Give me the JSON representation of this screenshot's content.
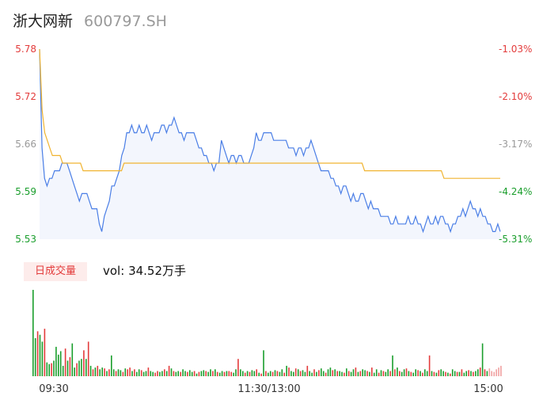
{
  "header": {
    "name": "浙大网新",
    "code": "600797.SH"
  },
  "volume_panel": {
    "badge": "日成交量",
    "label": "vol:",
    "value": "34.52万手"
  },
  "colors": {
    "price_line": "#4a7ee6",
    "avg_line": "#f0b431",
    "area_fill": "#f3f6fd",
    "up": "#e33b3b",
    "down": "#1a9e2c",
    "neutral": "#999999"
  },
  "chart_data": [
    {
      "type": "line",
      "y_ticks_left": [
        "5.78",
        "5.72",
        "5.66",
        "5.59",
        "5.53"
      ],
      "y_ticks_right": [
        "-1.03%",
        "-2.10%",
        "-3.17%",
        "-4.24%",
        "-5.31%"
      ],
      "ylim": [
        5.53,
        5.78
      ],
      "x_ticks": [
        "09:30",
        "11:30/13:00",
        "15:00"
      ],
      "series": [
        {
          "values": [
            5.78,
            5.65,
            5.61,
            5.6,
            5.61,
            5.61,
            5.62,
            5.62,
            5.62,
            5.63,
            5.63,
            5.63,
            5.62,
            5.61,
            5.6,
            5.59,
            5.58,
            5.59,
            5.59,
            5.59,
            5.58,
            5.57,
            5.57,
            5.57,
            5.55,
            5.54,
            5.56,
            5.57,
            5.58,
            5.6,
            5.6,
            5.61,
            5.62,
            5.64,
            5.65,
            5.67,
            5.67,
            5.68,
            5.67,
            5.67,
            5.68,
            5.67,
            5.67,
            5.68,
            5.67,
            5.66,
            5.67,
            5.67,
            5.67,
            5.68,
            5.68,
            5.67,
            5.68,
            5.68,
            5.69,
            5.68,
            5.67,
            5.67,
            5.66,
            5.67,
            5.67,
            5.67,
            5.67,
            5.66,
            5.65,
            5.65,
            5.64,
            5.64,
            5.63,
            5.63,
            5.62,
            5.63,
            5.63,
            5.66,
            5.65,
            5.64,
            5.63,
            5.64,
            5.64,
            5.63,
            5.64,
            5.64,
            5.63,
            5.63,
            5.63,
            5.64,
            5.65,
            5.67,
            5.66,
            5.66,
            5.67,
            5.67,
            5.67,
            5.67,
            5.66,
            5.66,
            5.66,
            5.66,
            5.66,
            5.66,
            5.65,
            5.65,
            5.65,
            5.64,
            5.65,
            5.65,
            5.64,
            5.65,
            5.65,
            5.66,
            5.65,
            5.64,
            5.63,
            5.62,
            5.62,
            5.62,
            5.62,
            5.61,
            5.61,
            5.6,
            5.6,
            5.59,
            5.6,
            5.6,
            5.59,
            5.58,
            5.59,
            5.58,
            5.58,
            5.59,
            5.59,
            5.58,
            5.57,
            5.58,
            5.57,
            5.57,
            5.57,
            5.56,
            5.56,
            5.56,
            5.56,
            5.55,
            5.55,
            5.56,
            5.55,
            5.55,
            5.55,
            5.55,
            5.56,
            5.55,
            5.55,
            5.56,
            5.55,
            5.55,
            5.54,
            5.55,
            5.56,
            5.55,
            5.55,
            5.56,
            5.55,
            5.56,
            5.56,
            5.55,
            5.55,
            5.54,
            5.55,
            5.55,
            5.56,
            5.56,
            5.57,
            5.56,
            5.57,
            5.58,
            5.57,
            5.57,
            5.56,
            5.57,
            5.56,
            5.56,
            5.55,
            5.55,
            5.54,
            5.54,
            5.55,
            5.54
          ],
          "line_color": "#4a7ee6"
        },
        {
          "values": [
            5.78,
            5.7,
            5.67,
            5.66,
            5.65,
            5.64,
            5.64,
            5.64,
            5.64,
            5.63,
            5.63,
            5.63,
            5.63,
            5.63,
            5.63,
            5.63,
            5.63,
            5.62,
            5.62,
            5.62,
            5.62,
            5.62,
            5.62,
            5.62,
            5.62,
            5.62,
            5.62,
            5.62,
            5.62,
            5.62,
            5.62,
            5.62,
            5.62,
            5.63,
            5.63,
            5.63,
            5.63,
            5.63,
            5.63,
            5.63,
            5.63,
            5.63,
            5.63,
            5.63,
            5.63,
            5.63,
            5.63,
            5.63,
            5.63,
            5.63,
            5.63,
            5.63,
            5.63,
            5.63,
            5.63,
            5.63,
            5.63,
            5.63,
            5.63,
            5.63,
            5.63,
            5.63,
            5.63,
            5.63,
            5.63,
            5.63,
            5.63,
            5.63,
            5.63,
            5.63,
            5.63,
            5.63,
            5.63,
            5.63,
            5.63,
            5.63,
            5.63,
            5.63,
            5.63,
            5.63,
            5.63,
            5.63,
            5.63,
            5.63,
            5.63,
            5.63,
            5.63,
            5.63,
            5.63,
            5.63,
            5.63,
            5.63,
            5.63,
            5.63,
            5.63,
            5.63,
            5.63,
            5.63,
            5.63,
            5.63,
            5.63,
            5.63,
            5.63,
            5.63,
            5.63,
            5.63,
            5.63,
            5.63,
            5.63,
            5.63,
            5.63,
            5.63,
            5.63,
            5.63,
            5.63,
            5.63,
            5.63,
            5.63,
            5.63,
            5.63,
            5.63,
            5.63,
            5.63,
            5.63,
            5.63,
            5.63,
            5.63,
            5.62,
            5.62,
            5.62,
            5.62,
            5.62,
            5.62,
            5.62,
            5.62,
            5.62,
            5.62,
            5.62,
            5.62,
            5.62,
            5.62,
            5.62,
            5.62,
            5.62,
            5.62,
            5.62,
            5.62,
            5.62,
            5.62,
            5.62,
            5.62,
            5.62,
            5.62,
            5.62,
            5.62,
            5.62,
            5.62,
            5.62,
            5.61,
            5.61,
            5.61,
            5.61,
            5.61,
            5.61,
            5.61,
            5.61,
            5.61,
            5.61,
            5.61,
            5.61,
            5.61,
            5.61,
            5.61,
            5.61,
            5.61,
            5.61,
            5.61,
            5.61,
            5.61,
            5.61,
            5.61
          ],
          "line_color": "#f0b431"
        }
      ]
    },
    {
      "type": "bar",
      "values": [
        100,
        44,
        52,
        48,
        40,
        55,
        16,
        14,
        15,
        18,
        34,
        25,
        29,
        12,
        32,
        18,
        22,
        38,
        10,
        15,
        18,
        20,
        30,
        20,
        40,
        12,
        8,
        10,
        12,
        8,
        10,
        9,
        6,
        8,
        24,
        8,
        6,
        8,
        7,
        5,
        9,
        8,
        10,
        6,
        8,
        5,
        8,
        7,
        5,
        6,
        10,
        6,
        5,
        4,
        6,
        5,
        6,
        8,
        6,
        12,
        9,
        6,
        5,
        6,
        5,
        8,
        6,
        5,
        7,
        5,
        6,
        3,
        5,
        6,
        7,
        6,
        5,
        8,
        6,
        8,
        5,
        4,
        6,
        5,
        6,
        6,
        5,
        4,
        8,
        20,
        8,
        6,
        4,
        6,
        5,
        7,
        6,
        8,
        4,
        3,
        30,
        6,
        4,
        6,
        5,
        7,
        6,
        5,
        8,
        4,
        12,
        10,
        6,
        5,
        9,
        8,
        6,
        7,
        5,
        12,
        6,
        4,
        8,
        5,
        7,
        9,
        6,
        4,
        8,
        10,
        7,
        8,
        6,
        6,
        5,
        4,
        9,
        6,
        5,
        8,
        10,
        5,
        6,
        8,
        7,
        6,
        5,
        10,
        4,
        8,
        4,
        7,
        6,
        5,
        8,
        6,
        24,
        8,
        10,
        6,
        5,
        8,
        9,
        6,
        5,
        4,
        8,
        7,
        6,
        4,
        8,
        6,
        24,
        6,
        5,
        4,
        7,
        8,
        6,
        5,
        4,
        3,
        8,
        6,
        5,
        5,
        8,
        4,
        6,
        7,
        6,
        5,
        6,
        8,
        10,
        38,
        8,
        6,
        9,
        6,
        5,
        8,
        10,
        12
      ],
      "colors": [
        "d",
        "d",
        "u",
        "d",
        "d",
        "u",
        "d",
        "d",
        "u",
        "d",
        "d",
        "d",
        "d",
        "d",
        "u",
        "d",
        "u",
        "d",
        "d",
        "u",
        "d",
        "d",
        "u",
        "d",
        "u",
        "d",
        "u",
        "d",
        "u",
        "d",
        "d",
        "u",
        "d",
        "u",
        "d",
        "d",
        "u",
        "d",
        "d",
        "u",
        "d",
        "u",
        "u",
        "d",
        "u",
        "d",
        "d",
        "u",
        "d",
        "d",
        "u",
        "d",
        "d",
        "u",
        "u",
        "d",
        "d",
        "u",
        "d",
        "u",
        "d",
        "u",
        "d",
        "d",
        "u",
        "d",
        "d",
        "u",
        "d",
        "d",
        "u",
        "d",
        "u",
        "d",
        "d",
        "u",
        "d",
        "d",
        "u",
        "d",
        "u",
        "d",
        "d",
        "u",
        "d",
        "u",
        "u",
        "d",
        "d",
        "u",
        "d",
        "d",
        "u",
        "d",
        "u",
        "d",
        "d",
        "u",
        "d",
        "u",
        "d",
        "u",
        "d",
        "d",
        "u",
        "d",
        "u",
        "d",
        "d",
        "u",
        "d",
        "u",
        "d",
        "d",
        "u",
        "d",
        "u",
        "d",
        "d",
        "u",
        "d",
        "d",
        "u",
        "d",
        "u",
        "d",
        "d",
        "u",
        "d",
        "d",
        "u",
        "d",
        "u",
        "d",
        "d",
        "u",
        "d",
        "u",
        "d",
        "d",
        "u",
        "d",
        "u",
        "d",
        "d",
        "u",
        "d",
        "u",
        "d",
        "d",
        "u",
        "d",
        "u",
        "d",
        "d",
        "u",
        "d",
        "u",
        "d",
        "u",
        "d",
        "d",
        "u",
        "d",
        "u",
        "d",
        "d",
        "u",
        "d",
        "u",
        "d",
        "d",
        "u",
        "d",
        "u",
        "d",
        "u",
        "d",
        "d",
        "u",
        "d",
        "u",
        "d",
        "d",
        "u",
        "d",
        "u",
        "d",
        "d",
        "u",
        "d",
        "u",
        "d",
        "d",
        "u",
        "d",
        "u",
        "d",
        "n"
      ]
    }
  ]
}
